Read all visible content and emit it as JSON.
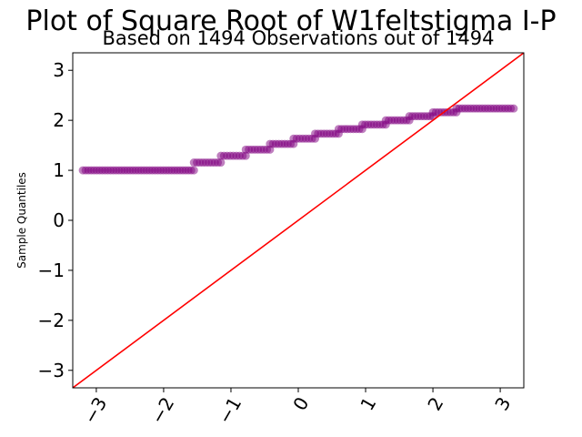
{
  "chart_data": {
    "type": "scatter",
    "title": "Plot of Square Root of W1feltstigma I-P",
    "subtitle": "Based on 1494 Observations out of 1494",
    "xlabel": "",
    "ylabel": "Sample Quantiles",
    "xlim": [
      -3.35,
      3.35
    ],
    "ylim": [
      -3.35,
      3.35
    ],
    "xticks": [
      -3,
      -2,
      -1,
      0,
      1,
      2,
      3
    ],
    "yticks": [
      -3,
      -2,
      -1,
      0,
      1,
      2,
      3
    ],
    "xtick_labels": [
      "−3",
      "−2",
      "−1",
      "0",
      "1",
      "2",
      "3"
    ],
    "ytick_labels": [
      "−3",
      "−2",
      "−1",
      "0",
      "1",
      "2",
      "3"
    ],
    "grid": false,
    "reference_line": {
      "slope": 1,
      "intercept": 0,
      "color": "#ff0000"
    },
    "point_color": "#800080",
    "steps": [
      {
        "y": 1.0,
        "x_start": -3.2,
        "x_end": -1.55
      },
      {
        "y": 1.155,
        "x_start": -1.55,
        "x_end": -1.15
      },
      {
        "y": 1.29,
        "x_start": -1.15,
        "x_end": -0.78
      },
      {
        "y": 1.414,
        "x_start": -0.78,
        "x_end": -0.42
      },
      {
        "y": 1.528,
        "x_start": -0.42,
        "x_end": -0.07
      },
      {
        "y": 1.633,
        "x_start": -0.07,
        "x_end": 0.25
      },
      {
        "y": 1.732,
        "x_start": 0.25,
        "x_end": 0.6
      },
      {
        "y": 1.826,
        "x_start": 0.6,
        "x_end": 0.95
      },
      {
        "y": 1.915,
        "x_start": 0.95,
        "x_end": 1.3
      },
      {
        "y": 2.0,
        "x_start": 1.3,
        "x_end": 1.65
      },
      {
        "y": 2.082,
        "x_start": 1.65,
        "x_end": 2.0
      },
      {
        "y": 2.16,
        "x_start": 2.0,
        "x_end": 2.35
      },
      {
        "y": 2.236,
        "x_start": 2.35,
        "x_end": 3.2
      }
    ]
  }
}
